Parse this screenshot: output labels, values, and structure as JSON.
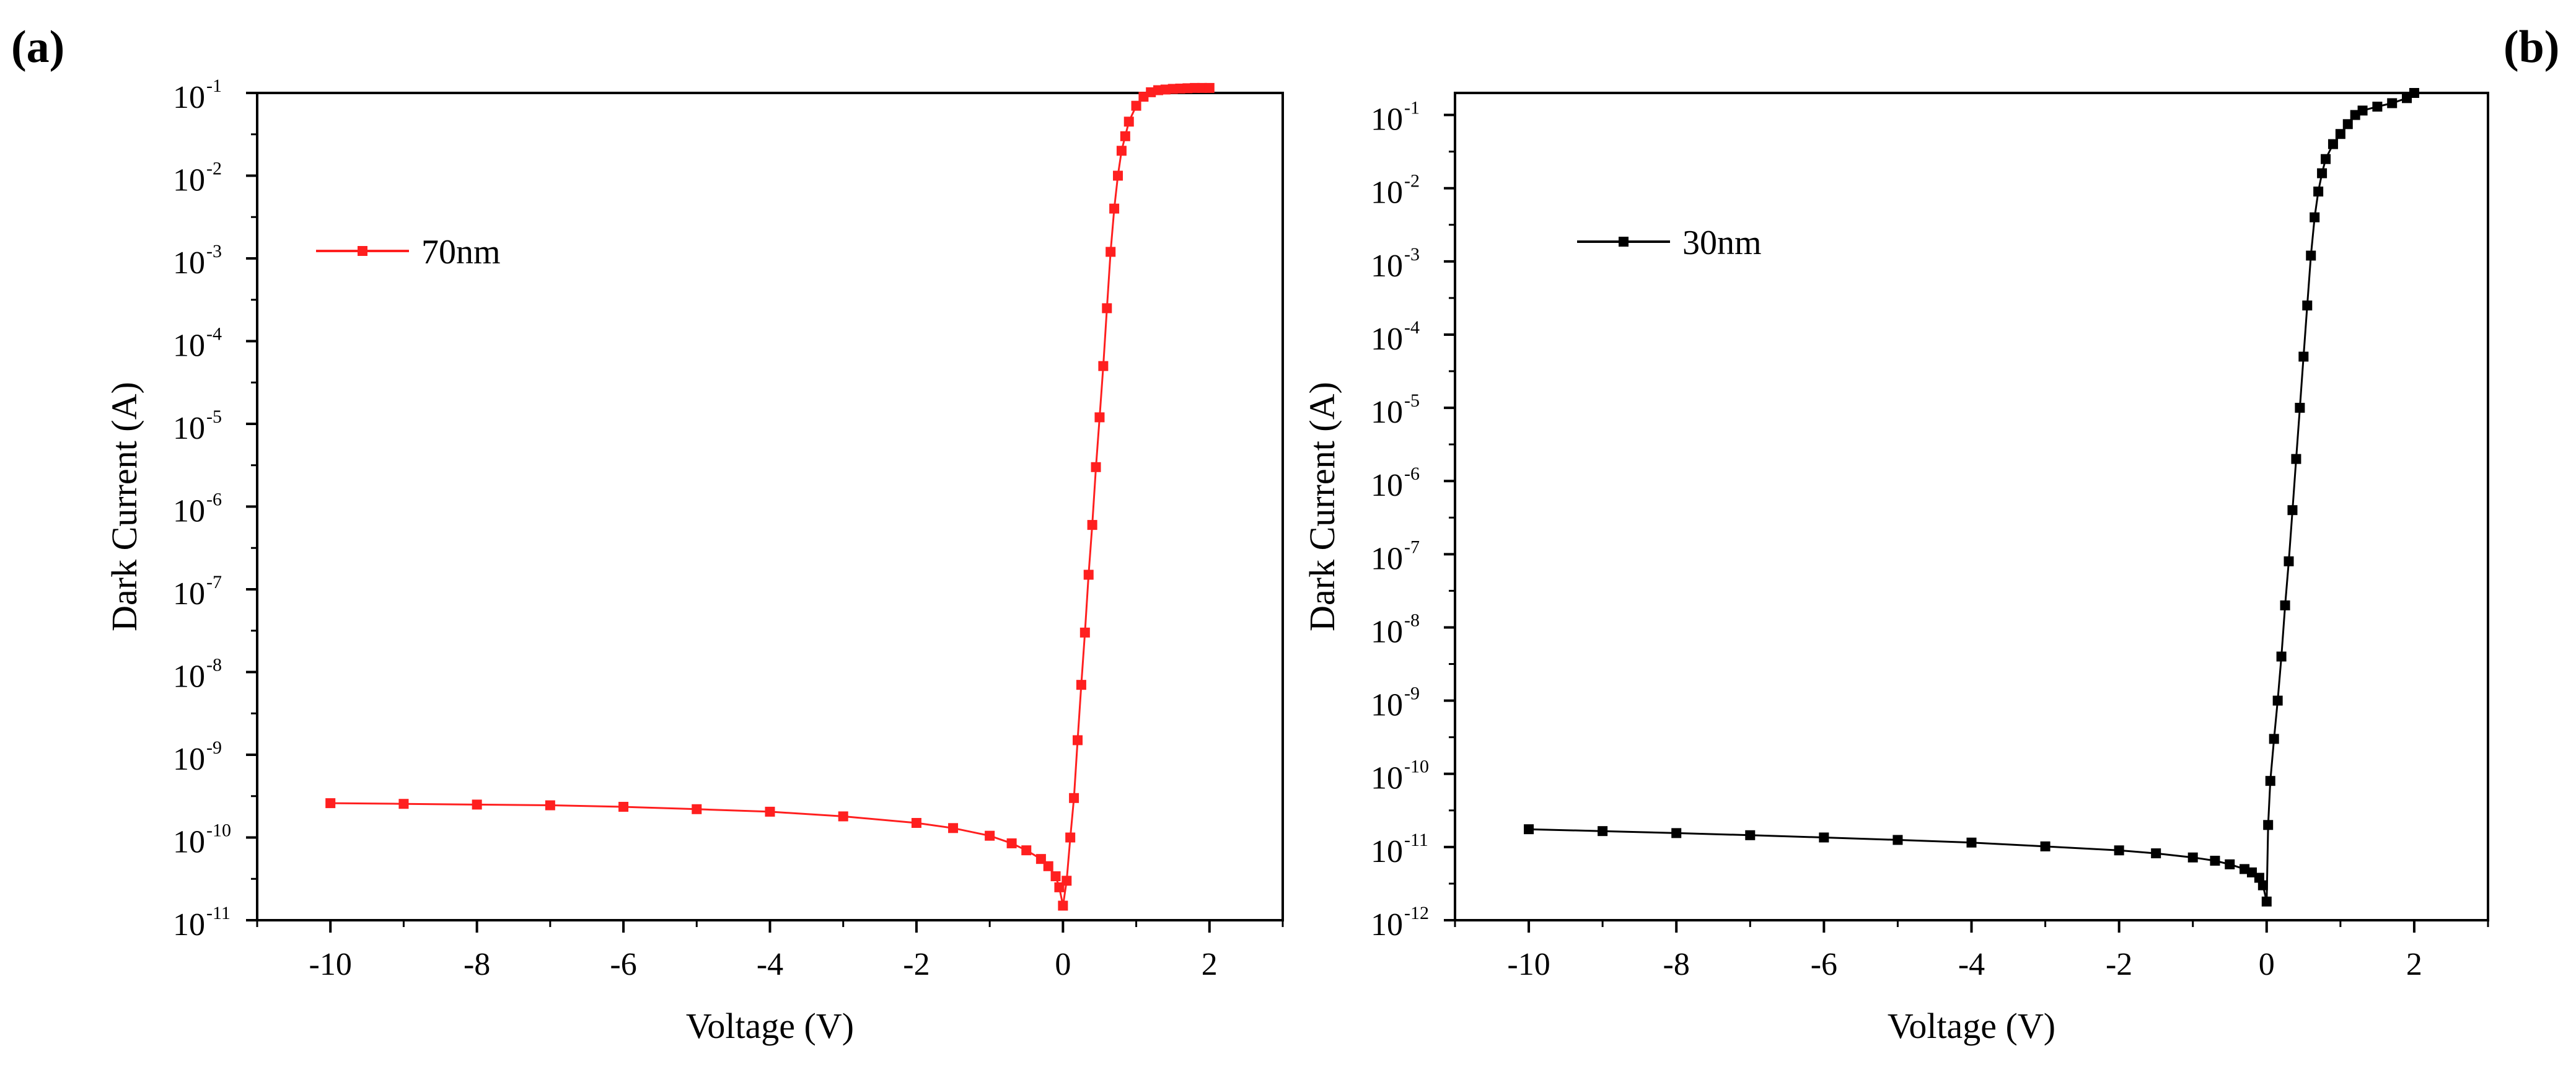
{
  "chart_data": [
    {
      "type": "scatter",
      "panel_label": "(a)",
      "title": "",
      "xlabel": "Voltage (V)",
      "ylabel": "Dark Current (A)",
      "yscale": "log",
      "xlim": [
        -11,
        3
      ],
      "ylim": [
        1e-11,
        0.1
      ],
      "xticks": [
        "-10",
        "-8",
        "-6",
        "-4",
        "-2",
        "0",
        "2"
      ],
      "yticks": [
        {
          "base": "10",
          "exp": "-11"
        },
        {
          "base": "10",
          "exp": "-10"
        },
        {
          "base": "10",
          "exp": "-9"
        },
        {
          "base": "10",
          "exp": "-8"
        },
        {
          "base": "10",
          "exp": "-7"
        },
        {
          "base": "10",
          "exp": "-6"
        },
        {
          "base": "10",
          "exp": "-5"
        },
        {
          "base": "10",
          "exp": "-4"
        },
        {
          "base": "10",
          "exp": "-3"
        },
        {
          "base": "10",
          "exp": "-2"
        },
        {
          "base": "10",
          "exp": "-1"
        }
      ],
      "legend": {
        "label": "70nm",
        "position": "upper-left"
      },
      "color": "#ff1f1f",
      "series": [
        {
          "name": "70nm",
          "x": [
            -10,
            -9,
            -8,
            -7,
            -6,
            -5,
            -4,
            -3,
            -2,
            -1.5,
            -1,
            -0.7,
            -0.5,
            -0.3,
            -0.2,
            -0.1,
            -0.05,
            0,
            0.05,
            0.1,
            0.15,
            0.2,
            0.25,
            0.3,
            0.35,
            0.4,
            0.45,
            0.5,
            0.55,
            0.6,
            0.65,
            0.7,
            0.75,
            0.8,
            0.85,
            0.9,
            1.0,
            1.1,
            1.2,
            1.3,
            1.4,
            1.5,
            1.6,
            1.7,
            1.8,
            1.9,
            2.0
          ],
          "y": [
            2.6e-10,
            2.55e-10,
            2.5e-10,
            2.45e-10,
            2.35e-10,
            2.2e-10,
            2.05e-10,
            1.8e-10,
            1.5e-10,
            1.3e-10,
            1.05e-10,
            8.5e-11,
            7e-11,
            5.5e-11,
            4.5e-11,
            3.4e-11,
            2.5e-11,
            1.5e-11,
            3e-11,
            1e-10,
            3e-10,
            1.5e-09,
            7e-09,
            3e-08,
            1.5e-07,
            6e-07,
            3e-06,
            1.2e-05,
            5e-05,
            0.00025,
            0.0012,
            0.004,
            0.01,
            0.02,
            0.03,
            0.045,
            0.07,
            0.09,
            0.102,
            0.108,
            0.11,
            0.112,
            0.113,
            0.114,
            0.115,
            0.115,
            0.115
          ]
        }
      ]
    },
    {
      "type": "scatter",
      "panel_label": "(b)",
      "title": "",
      "xlabel": "Voltage (V)",
      "ylabel": "Dark Current (A)",
      "yscale": "log",
      "xlim": [
        -11,
        3
      ],
      "ylim": [
        1e-12,
        0.2
      ],
      "xticks": [
        "-10",
        "-8",
        "-6",
        "-4",
        "-2",
        "0",
        "2"
      ],
      "yticks": [
        {
          "base": "10",
          "exp": "-12"
        },
        {
          "base": "10",
          "exp": "-11"
        },
        {
          "base": "10",
          "exp": "-10"
        },
        {
          "base": "10",
          "exp": "-9"
        },
        {
          "base": "10",
          "exp": "-8"
        },
        {
          "base": "10",
          "exp": "-7"
        },
        {
          "base": "10",
          "exp": "-6"
        },
        {
          "base": "10",
          "exp": "-5"
        },
        {
          "base": "10",
          "exp": "-4"
        },
        {
          "base": "10",
          "exp": "-3"
        },
        {
          "base": "10",
          "exp": "-2"
        },
        {
          "base": "10",
          "exp": "-1"
        }
      ],
      "legend": {
        "label": "30nm",
        "position": "upper-left"
      },
      "color": "#000000",
      "series": [
        {
          "name": "30nm",
          "x": [
            -10,
            -9,
            -8,
            -7,
            -6,
            -5,
            -4,
            -3,
            -2,
            -1.5,
            -1,
            -0.7,
            -0.5,
            -0.3,
            -0.2,
            -0.1,
            -0.05,
            0,
            0.02,
            0.05,
            0.1,
            0.15,
            0.2,
            0.25,
            0.3,
            0.35,
            0.4,
            0.45,
            0.5,
            0.55,
            0.6,
            0.65,
            0.7,
            0.75,
            0.8,
            0.9,
            1.0,
            1.1,
            1.2,
            1.3,
            1.5,
            1.7,
            1.9,
            2.0
          ],
          "y": [
            1.75e-11,
            1.65e-11,
            1.55e-11,
            1.45e-11,
            1.35e-11,
            1.25e-11,
            1.15e-11,
            1.02e-11,
            9e-12,
            8.2e-12,
            7.2e-12,
            6.5e-12,
            5.8e-12,
            5e-12,
            4.5e-12,
            3.8e-12,
            3e-12,
            1.8e-12,
            2e-11,
            8e-11,
            3e-10,
            1e-09,
            4e-09,
            2e-08,
            8e-08,
            4e-07,
            2e-06,
            1e-05,
            5e-05,
            0.00025,
            0.0012,
            0.004,
            0.009,
            0.016,
            0.025,
            0.04,
            0.055,
            0.075,
            0.1,
            0.115,
            0.13,
            0.145,
            0.17,
            0.2
          ]
        }
      ]
    }
  ]
}
